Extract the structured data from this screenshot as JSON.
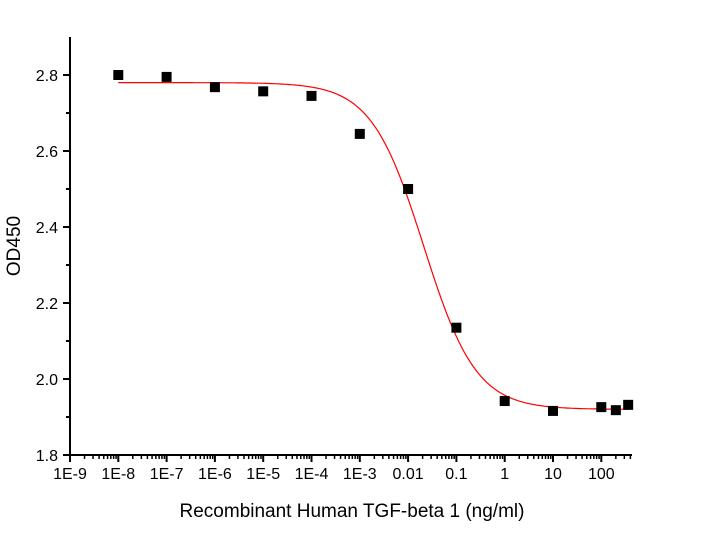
{
  "chart_data": {
    "type": "scatter",
    "title": "",
    "xlabel": "Recombinant Human TGF-beta 1 (ng/ml)",
    "ylabel": "OD450",
    "xscale": "log",
    "xlim": [
      1e-09,
      440
    ],
    "ylim": [
      1.8,
      2.91
    ],
    "xticks": [
      1e-09,
      1e-08,
      1e-07,
      1e-06,
      1e-05,
      0.0001,
      0.001,
      0.01,
      0.1,
      1,
      10,
      100
    ],
    "xtick_labels": [
      "1E-9",
      "1E-8",
      "1E-7",
      "1E-6",
      "1E-5",
      "1E-4",
      "1E-3",
      "0.01",
      "0.1",
      "1",
      "10",
      "100"
    ],
    "yticks": [
      1.8,
      2.0,
      2.2,
      2.4,
      2.6,
      2.8
    ],
    "ytick_labels": [
      "1.8",
      "2.0",
      "2.2",
      "2.4",
      "2.6",
      "2.8"
    ],
    "grid": false,
    "legend": "none",
    "series": [
      {
        "marker": "square",
        "color": "#000000",
        "x": [
          1e-08,
          1e-07,
          1e-06,
          1e-05,
          0.0001,
          0.001,
          0.01,
          0.1,
          1,
          10,
          100,
          200,
          360
        ],
        "y": [
          2.8,
          2.795,
          2.768,
          2.757,
          2.745,
          2.645,
          2.5,
          2.135,
          1.942,
          1.916,
          1.926,
          1.918,
          1.932
        ]
      }
    ],
    "fit": {
      "type": "4PL",
      "color": "#ff0000",
      "top": 2.78,
      "bottom": 1.92,
      "ec50": 0.021,
      "hill": 0.8
    }
  }
}
